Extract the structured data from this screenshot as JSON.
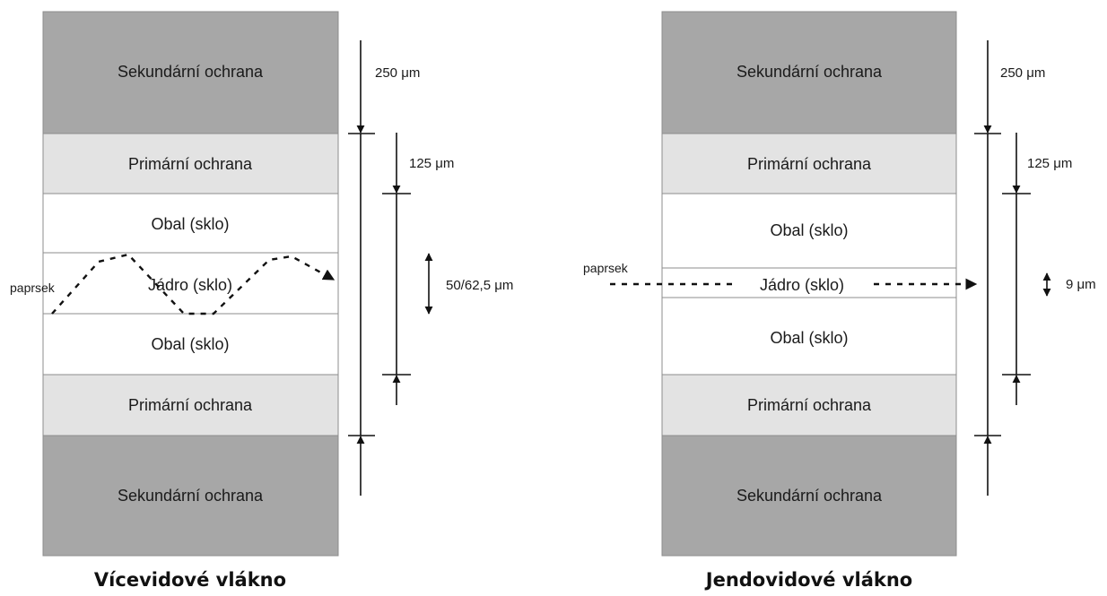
{
  "colors": {
    "secondary_coating": "#a7a7a7",
    "primary_coating": "#e3e3e3",
    "glass": "#ffffff",
    "outline": "#8c8c8c",
    "line": "#111111"
  },
  "multimode": {
    "title": "Vícevidové vlákno",
    "layers": {
      "secondary_top": "Sekundární ochrana",
      "primary_top": "Primární ochrana",
      "cladding_top": "Obal (sklo)",
      "core": "Jádro (sklo)",
      "cladding_bottom": "Obal (sklo)",
      "primary_bottom": "Primární ochrana",
      "secondary_bottom": "Sekundární ochrana"
    },
    "ray_label": "paprsek",
    "dim_outer": "250 μm",
    "dim_cladding": "125 μm",
    "dim_core": "50/62,5 μm"
  },
  "singlemode": {
    "title": "Jendovidové vlákno",
    "layers": {
      "secondary_top": "Sekundární ochrana",
      "primary_top": "Primární ochrana",
      "cladding_top": "Obal (sklo)",
      "core": "Jádro (sklo)",
      "cladding_bottom": "Obal (sklo)",
      "primary_bottom": "Primární ochrana",
      "secondary_bottom": "Sekundární ochrana"
    },
    "ray_label": "paprsek",
    "dim_outer": "250 μm",
    "dim_cladding": "125 μm",
    "dim_core": "9 μm"
  }
}
